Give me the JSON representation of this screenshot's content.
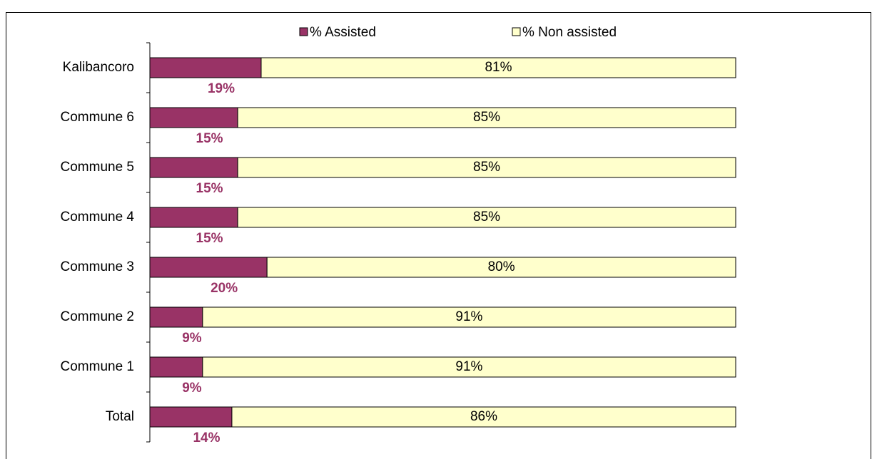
{
  "chart_data": {
    "type": "stacked_barh",
    "categories": [
      "Kalibancoro",
      "Commune 6",
      "Commune 5",
      "Commune 4",
      "Commune 3",
      "Commune 2",
      "Commune 1",
      "Total"
    ],
    "series": [
      {
        "name": "% Assisted",
        "color": "#993366",
        "values": [
          19,
          15,
          15,
          15,
          20,
          9,
          9,
          14
        ],
        "value_labels": [
          "19%",
          "15%",
          "15%",
          "15%",
          "20%",
          "9%",
          "9%",
          "14%"
        ]
      },
      {
        "name": "% Non assisted",
        "color": "#ffffcc",
        "values": [
          81,
          85,
          85,
          85,
          80,
          91,
          91,
          86
        ],
        "value_labels": [
          "81%",
          "85%",
          "85%",
          "85%",
          "80%",
          "91%",
          "91%",
          "86%"
        ]
      }
    ],
    "xlim": [
      0,
      100
    ],
    "legend": "top"
  }
}
